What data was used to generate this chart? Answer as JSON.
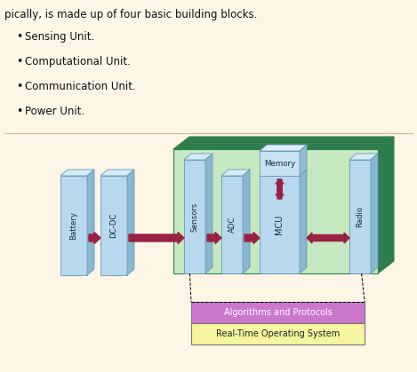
{
  "bg_color": "#fdf5e6",
  "green_dark": "#2e7d4f",
  "green_light": "#c5e8c0",
  "face_color": "#b8d8ed",
  "side_color": "#88b8d0",
  "top_color": "#d5ecf8",
  "arrow_color": "#992244",
  "bar1_color": "#cc77cc",
  "bar2_color": "#f5f5a0",
  "bar1_text": "Algorithms and Protocols",
  "bar2_text": "Real-Time Operating System",
  "bullet_items": [
    "Sensing Unit.",
    "Computational Unit.",
    "Communication Unit.",
    "Power Unit."
  ],
  "intro_text": "pically, is made up of four basic building blocks.",
  "figsize": [
    4.69,
    4.19
  ],
  "dpi": 100
}
